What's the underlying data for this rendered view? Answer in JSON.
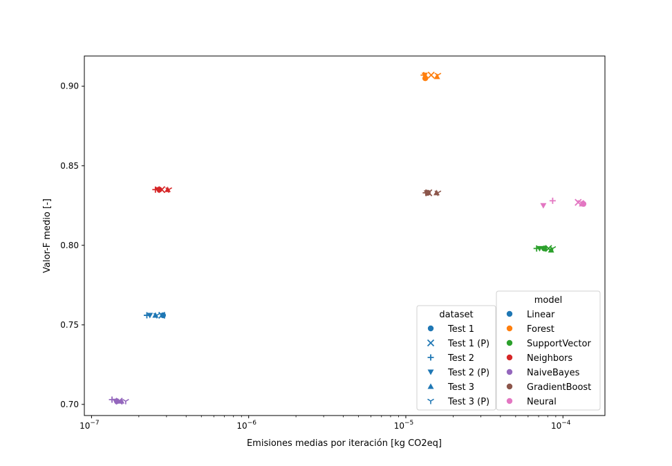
{
  "chart_data": {
    "type": "scatter",
    "xlabel": "Emisiones medias por iteración [kg CO2eq]",
    "ylabel": "Valor-F medio [-]",
    "xscale": "log",
    "xlim": [
      9e-08,
      0.000185
    ],
    "ylim": [
      0.693,
      0.919
    ],
    "x_ticks": [
      {
        "value": 1e-07,
        "base": "10",
        "exp": "−7"
      },
      {
        "value": 1e-06,
        "base": "10",
        "exp": "−6"
      },
      {
        "value": 1e-05,
        "base": "10",
        "exp": "−5"
      },
      {
        "value": 0.0001,
        "base": "10",
        "exp": "−4"
      }
    ],
    "y_ticks": [
      "0.70",
      "0.75",
      "0.80",
      "0.85",
      "0.90"
    ],
    "datasets": [
      {
        "name": "Test 1",
        "marker": "circle"
      },
      {
        "name": "Test 1 (P)",
        "marker": "x"
      },
      {
        "name": "Test 2",
        "marker": "plus"
      },
      {
        "name": "Test 2 (P)",
        "marker": "triangle-down"
      },
      {
        "name": "Test 3",
        "marker": "triangle-up"
      },
      {
        "name": "Test 3 (P)",
        "marker": "tri-down"
      }
    ],
    "models": [
      {
        "name": "Linear",
        "color": "#1f77b4"
      },
      {
        "name": "Forest",
        "color": "#ff7f0e"
      },
      {
        "name": "SupportVector",
        "color": "#2ca02c"
      },
      {
        "name": "Neighbors",
        "color": "#d62728"
      },
      {
        "name": "NaiveBayes",
        "color": "#9467bd"
      },
      {
        "name": "GradientBoost",
        "color": "#8c564b"
      },
      {
        "name": "Neural",
        "color": "#e377c2"
      }
    ],
    "legend_dataset_title": "dataset",
    "legend_model_title": "model",
    "legend_placement": "lower-right",
    "series": [
      {
        "name": "Linear",
        "points": [
          {
            "dataset": "Test 1",
            "x": 2.85e-07,
            "y": 0.756
          },
          {
            "dataset": "Test 1 (P)",
            "x": 2.8e-07,
            "y": 0.756
          },
          {
            "dataset": "Test 2",
            "x": 2.25e-07,
            "y": 0.756
          },
          {
            "dataset": "Test 2 (P)",
            "x": 2.35e-07,
            "y": 0.756
          },
          {
            "dataset": "Test 3",
            "x": 2.55e-07,
            "y": 0.756
          },
          {
            "dataset": "Test 3 (P)",
            "x": 2.6e-07,
            "y": 0.756
          }
        ]
      },
      {
        "name": "Forest",
        "points": [
          {
            "dataset": "Test 1",
            "x": 1.33e-05,
            "y": 0.905
          },
          {
            "dataset": "Test 1 (P)",
            "x": 1.45e-05,
            "y": 0.907
          },
          {
            "dataset": "Test 2",
            "x": 1.3e-05,
            "y": 0.907
          },
          {
            "dataset": "Test 2 (P)",
            "x": 1.32e-05,
            "y": 0.907
          },
          {
            "dataset": "Test 3",
            "x": 1.58e-05,
            "y": 0.906
          },
          {
            "dataset": "Test 3 (P)",
            "x": 1.6e-05,
            "y": 0.907
          }
        ]
      },
      {
        "name": "SupportVector",
        "points": [
          {
            "dataset": "Test 1",
            "x": 7.6e-05,
            "y": 0.798
          },
          {
            "dataset": "Test 1 (P)",
            "x": 8.1e-05,
            "y": 0.798
          },
          {
            "dataset": "Test 2",
            "x": 6.8e-05,
            "y": 0.798
          },
          {
            "dataset": "Test 2 (P)",
            "x": 7.1e-05,
            "y": 0.798
          },
          {
            "dataset": "Test 3",
            "x": 8.4e-05,
            "y": 0.797
          },
          {
            "dataset": "Test 3 (P)",
            "x": 8.6e-05,
            "y": 0.798
          }
        ]
      },
      {
        "name": "Neighbors",
        "points": [
          {
            "dataset": "Test 1",
            "x": 2.7e-07,
            "y": 0.835
          },
          {
            "dataset": "Test 1 (P)",
            "x": 2.8e-07,
            "y": 0.835
          },
          {
            "dataset": "Test 2",
            "x": 2.55e-07,
            "y": 0.835
          },
          {
            "dataset": "Test 2 (P)",
            "x": 2.65e-07,
            "y": 0.835
          },
          {
            "dataset": "Test 3",
            "x": 3.05e-07,
            "y": 0.835
          },
          {
            "dataset": "Test 3 (P)",
            "x": 3.1e-07,
            "y": 0.835
          }
        ]
      },
      {
        "name": "NaiveBayes",
        "points": [
          {
            "dataset": "Test 1",
            "x": 1.45e-07,
            "y": 0.702
          },
          {
            "dataset": "Test 1 (P)",
            "x": 1.5e-07,
            "y": 0.702
          },
          {
            "dataset": "Test 2",
            "x": 1.35e-07,
            "y": 0.703
          },
          {
            "dataset": "Test 2 (P)",
            "x": 1.42e-07,
            "y": 0.702
          },
          {
            "dataset": "Test 3",
            "x": 1.55e-07,
            "y": 0.702
          },
          {
            "dataset": "Test 3 (P)",
            "x": 1.65e-07,
            "y": 0.702
          }
        ]
      },
      {
        "name": "GradientBoost",
        "points": [
          {
            "dataset": "Test 1",
            "x": 1.38e-05,
            "y": 0.833
          },
          {
            "dataset": "Test 1 (P)",
            "x": 1.4e-05,
            "y": 0.833
          },
          {
            "dataset": "Test 2",
            "x": 1.34e-05,
            "y": 0.833
          },
          {
            "dataset": "Test 2 (P)",
            "x": 1.36e-05,
            "y": 0.833
          },
          {
            "dataset": "Test 3",
            "x": 1.57e-05,
            "y": 0.833
          },
          {
            "dataset": "Test 3 (P)",
            "x": 1.6e-05,
            "y": 0.833
          }
        ]
      },
      {
        "name": "Neural",
        "points": [
          {
            "dataset": "Test 1",
            "x": 0.000135,
            "y": 0.826
          },
          {
            "dataset": "Test 1 (P)",
            "x": 0.000125,
            "y": 0.827
          },
          {
            "dataset": "Test 2",
            "x": 8.6e-05,
            "y": 0.828
          },
          {
            "dataset": "Test 2 (P)",
            "x": 7.5e-05,
            "y": 0.825
          },
          {
            "dataset": "Test 3",
            "x": 0.000132,
            "y": 0.826
          },
          {
            "dataset": "Test 3 (P)",
            "x": 0.00013,
            "y": 0.827
          }
        ]
      }
    ]
  }
}
